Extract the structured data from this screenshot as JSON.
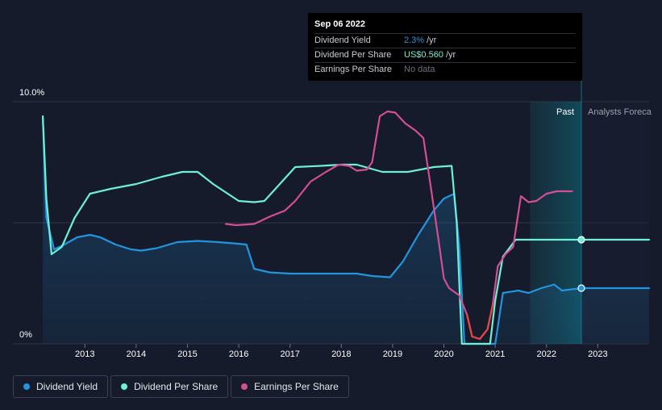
{
  "tooltip": {
    "date": "Sep 06 2022",
    "rows": [
      {
        "label": "Dividend Yield",
        "value": "2.3%",
        "unit": "/yr",
        "color": "#2394df"
      },
      {
        "label": "Dividend Per Share",
        "value": "US$0.560",
        "unit": "/yr",
        "color": "#6ef0d6"
      },
      {
        "label": "Earnings Per Share",
        "value": "No data",
        "unit": "",
        "color": "#6b7080"
      }
    ]
  },
  "regions": {
    "past_label": "Past",
    "forecast_label": "Analysts Foreca"
  },
  "legend": [
    {
      "label": "Dividend Yield",
      "color": "#2394df"
    },
    {
      "label": "Dividend Per Share",
      "color": "#6ef0d6"
    },
    {
      "label": "Earnings Per Share",
      "color": "#d34e94"
    }
  ],
  "chart_data": {
    "type": "line",
    "title": "",
    "xlabel": "",
    "ylabel": "",
    "x_ticks": [
      "2013",
      "2014",
      "2015",
      "2016",
      "2017",
      "2018",
      "2019",
      "2020",
      "2021",
      "2022",
      "2023"
    ],
    "y_ticks": [
      "10.0%",
      "0%"
    ],
    "xlim": [
      2012.1,
      2024.0
    ],
    "ylim": [
      0,
      10
    ],
    "grid": "horizontal",
    "marker_date": 2022.68,
    "past_region": [
      2021.68,
      2022.68
    ],
    "series": [
      {
        "name": "Dividend Yield",
        "color": "#2394df",
        "area": true,
        "points": [
          [
            2012.18,
            9.3
          ],
          [
            2012.25,
            5.2
          ],
          [
            2012.4,
            3.9
          ],
          [
            2012.6,
            4.1
          ],
          [
            2012.85,
            4.4
          ],
          [
            2013.1,
            4.5
          ],
          [
            2013.3,
            4.4
          ],
          [
            2013.6,
            4.1
          ],
          [
            2013.9,
            3.9
          ],
          [
            2014.1,
            3.85
          ],
          [
            2014.4,
            3.95
          ],
          [
            2014.8,
            4.2
          ],
          [
            2015.2,
            4.25
          ],
          [
            2015.6,
            4.2
          ],
          [
            2015.9,
            4.15
          ],
          [
            2016.15,
            4.1
          ],
          [
            2016.3,
            3.1
          ],
          [
            2016.6,
            2.95
          ],
          [
            2017.0,
            2.9
          ],
          [
            2017.5,
            2.9
          ],
          [
            2018.0,
            2.9
          ],
          [
            2018.3,
            2.9
          ],
          [
            2018.6,
            2.8
          ],
          [
            2018.95,
            2.75
          ],
          [
            2019.2,
            3.4
          ],
          [
            2019.5,
            4.5
          ],
          [
            2019.8,
            5.5
          ],
          [
            2020.0,
            6.0
          ],
          [
            2020.2,
            6.2
          ],
          [
            2020.3,
            4.0
          ],
          [
            2020.4,
            0.0
          ],
          [
            2021.0,
            0.0
          ],
          [
            2021.15,
            2.1
          ],
          [
            2021.45,
            2.2
          ],
          [
            2021.65,
            2.1
          ],
          [
            2021.9,
            2.3
          ],
          [
            2022.15,
            2.45
          ],
          [
            2022.3,
            2.2
          ],
          [
            2022.68,
            2.3
          ],
          [
            2024.0,
            2.3
          ]
        ],
        "forecast_from": 2022.68
      },
      {
        "name": "Dividend Per Share",
        "color": "#6ef0d6",
        "area": false,
        "points": [
          [
            2012.18,
            9.4
          ],
          [
            2012.25,
            6.0
          ],
          [
            2012.35,
            3.7
          ],
          [
            2012.55,
            4.0
          ],
          [
            2012.8,
            5.2
          ],
          [
            2013.1,
            6.2
          ],
          [
            2013.5,
            6.4
          ],
          [
            2014.0,
            6.6
          ],
          [
            2014.5,
            6.9
          ],
          [
            2014.9,
            7.1
          ],
          [
            2015.2,
            7.1
          ],
          [
            2015.5,
            6.6
          ],
          [
            2016.0,
            5.9
          ],
          [
            2016.3,
            5.85
          ],
          [
            2016.5,
            5.9
          ],
          [
            2016.8,
            6.6
          ],
          [
            2017.1,
            7.3
          ],
          [
            2017.6,
            7.35
          ],
          [
            2018.0,
            7.4
          ],
          [
            2018.3,
            7.4
          ],
          [
            2018.8,
            7.1
          ],
          [
            2019.3,
            7.1
          ],
          [
            2019.8,
            7.3
          ],
          [
            2020.15,
            7.35
          ],
          [
            2020.25,
            5.0
          ],
          [
            2020.35,
            0.0
          ],
          [
            2020.9,
            0.0
          ],
          [
            2021.0,
            1.8
          ],
          [
            2021.15,
            3.6
          ],
          [
            2021.4,
            4.3
          ],
          [
            2022.68,
            4.3
          ],
          [
            2024.0,
            4.3
          ]
        ],
        "forecast_from": 2022.68
      },
      {
        "name": "Earnings Per Share",
        "color": "#d34e94",
        "area": false,
        "points": [
          [
            2015.75,
            4.95
          ],
          [
            2015.95,
            4.9
          ],
          [
            2016.3,
            4.95
          ],
          [
            2016.6,
            5.25
          ],
          [
            2016.9,
            5.5
          ],
          [
            2017.1,
            5.9
          ],
          [
            2017.4,
            6.7
          ],
          [
            2017.7,
            7.1
          ],
          [
            2017.95,
            7.4
          ],
          [
            2018.15,
            7.35
          ],
          [
            2018.3,
            7.15
          ],
          [
            2018.5,
            7.2
          ],
          [
            2018.6,
            7.5
          ],
          [
            2018.75,
            9.4
          ],
          [
            2018.9,
            9.6
          ],
          [
            2019.05,
            9.55
          ],
          [
            2019.25,
            9.1
          ],
          [
            2019.45,
            8.8
          ],
          [
            2019.6,
            8.5
          ],
          [
            2019.75,
            6.4
          ],
          [
            2019.9,
            4.2
          ],
          [
            2020.0,
            2.7
          ],
          [
            2020.1,
            2.3
          ],
          [
            2020.3,
            2.0
          ],
          [
            2020.45,
            1.2
          ],
          [
            2020.55,
            0.3
          ],
          [
            2020.7,
            0.2
          ],
          [
            2020.85,
            0.6
          ],
          [
            2020.95,
            1.6
          ],
          [
            2021.05,
            3.2
          ],
          [
            2021.2,
            3.7
          ],
          [
            2021.35,
            4.0
          ],
          [
            2021.5,
            6.1
          ],
          [
            2021.65,
            5.85
          ],
          [
            2021.8,
            5.9
          ],
          [
            2022.0,
            6.2
          ],
          [
            2022.2,
            6.3
          ],
          [
            2022.5,
            6.3
          ]
        ],
        "highlight_range": [
          2020.4,
          2020.95
        ],
        "highlight_color": "#e84545"
      }
    ]
  }
}
